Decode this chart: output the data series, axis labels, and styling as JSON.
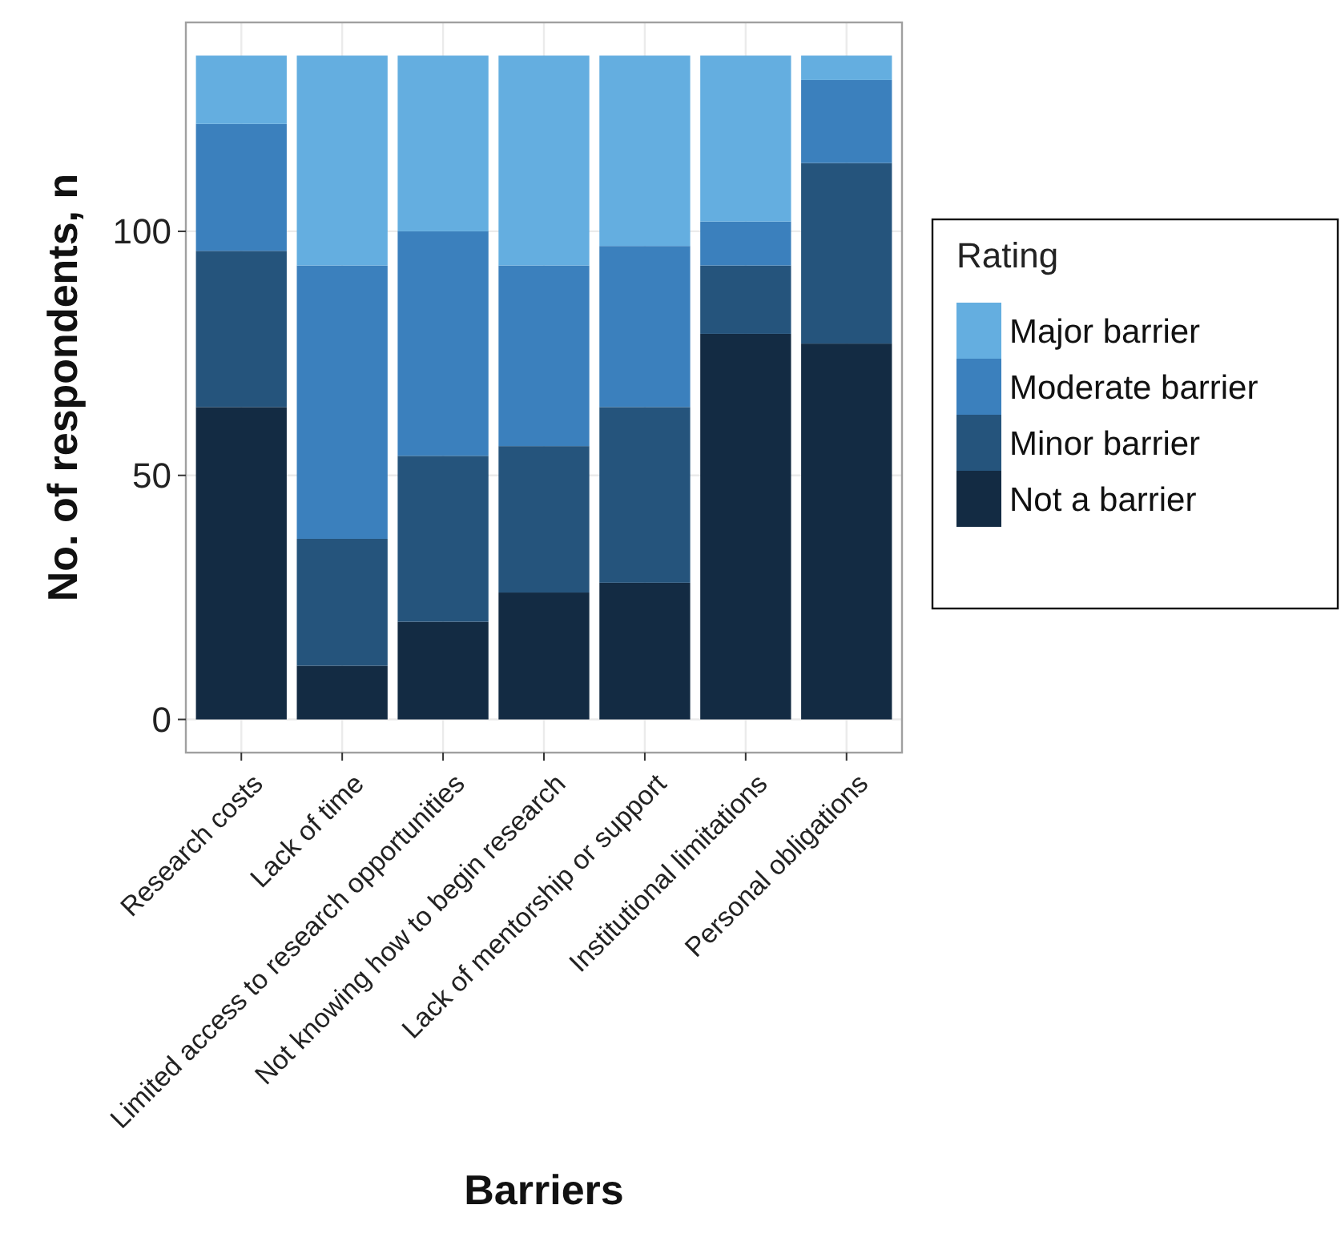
{
  "chart_data": {
    "type": "bar",
    "stacked": true,
    "xlabel": "Barriers",
    "ylabel": "No. of respondents, n",
    "legend_title": "Rating",
    "legend": "right",
    "grid": true,
    "categories": [
      "Research costs",
      "Lack of time",
      "Limited access to research opportunities",
      "Not knowing how to begin research",
      "Lack of mentorship or support",
      "Institutional limitations",
      "Personal obligations"
    ],
    "ylim": [
      -6.8,
      142.8
    ],
    "yticks": [
      0,
      50,
      100
    ],
    "series": [
      {
        "name": "Not a barrier",
        "color": "#132b43",
        "values": [
          64,
          11,
          20,
          26,
          28,
          79,
          77
        ]
      },
      {
        "name": "Minor barrier",
        "color": "#25547c",
        "values": [
          32,
          26,
          34,
          30,
          36,
          14,
          37
        ]
      },
      {
        "name": "Moderate barrier",
        "color": "#3b80bd",
        "values": [
          26,
          56,
          46,
          37,
          33,
          9,
          17
        ]
      },
      {
        "name": "Major barrier",
        "color": "#64aee0",
        "values": [
          14,
          43,
          36,
          43,
          39,
          34,
          5
        ]
      }
    ]
  }
}
